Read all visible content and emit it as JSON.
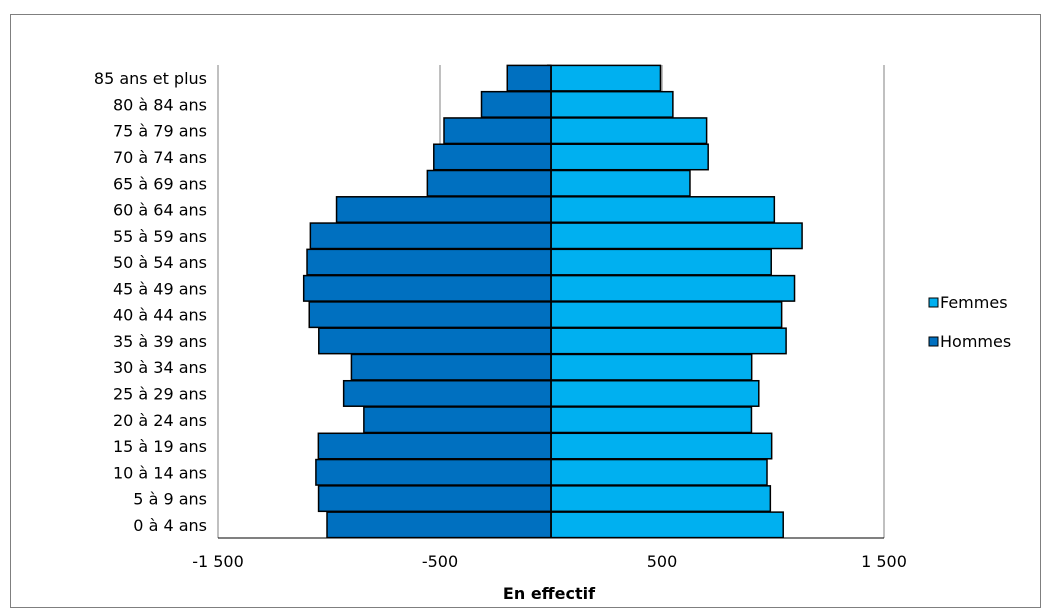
{
  "chart_data": {
    "type": "bar",
    "orientation": "horizontal",
    "layout": "population-pyramid",
    "categories": [
      "85 ans et plus",
      "80 à 84 ans",
      "75 à 79 ans",
      "70 à 74 ans",
      "65 à 69 ans",
      "60 à 64 ans",
      "55 à 59 ans",
      "50 à 54 ans",
      "45 à 49 ans",
      "40 à 44 ans",
      "35 à 39 ans",
      "30 à 34 ans",
      "25 à 29 ans",
      "20 à 24 ans",
      "15 à 19 ans",
      "10 à 14 ans",
      "5 à 9  ans",
      "0 à 4 ans"
    ],
    "series": [
      {
        "name": "Femmes",
        "color": "#00b0f0",
        "values": [
          493,
          549,
          701,
          708,
          626,
          1006,
          1131,
          992,
          1097,
          1039,
          1059,
          904,
          936,
          903,
          994,
          973,
          988,
          1046
        ]
      },
      {
        "name": "Hommes",
        "color": "#0070c0",
        "values": [
          -197,
          -313,
          -482,
          -528,
          -557,
          -966,
          -1084,
          -1099,
          -1114,
          -1089,
          -1046,
          -899,
          -934,
          -843,
          -1048,
          -1059,
          -1047,
          -1009
        ]
      }
    ],
    "xlabel": "En effectif",
    "ylabel": "",
    "xlim": [
      -1500,
      1500
    ],
    "xticks": [
      -1500,
      -500,
      500,
      1500
    ],
    "xtick_labels": [
      "-1 500",
      "-500",
      "500",
      "1 500"
    ],
    "grid": "vertical major gridlines",
    "legend": "right",
    "legend_order": [
      "Femmes",
      "Hommes"
    ]
  }
}
